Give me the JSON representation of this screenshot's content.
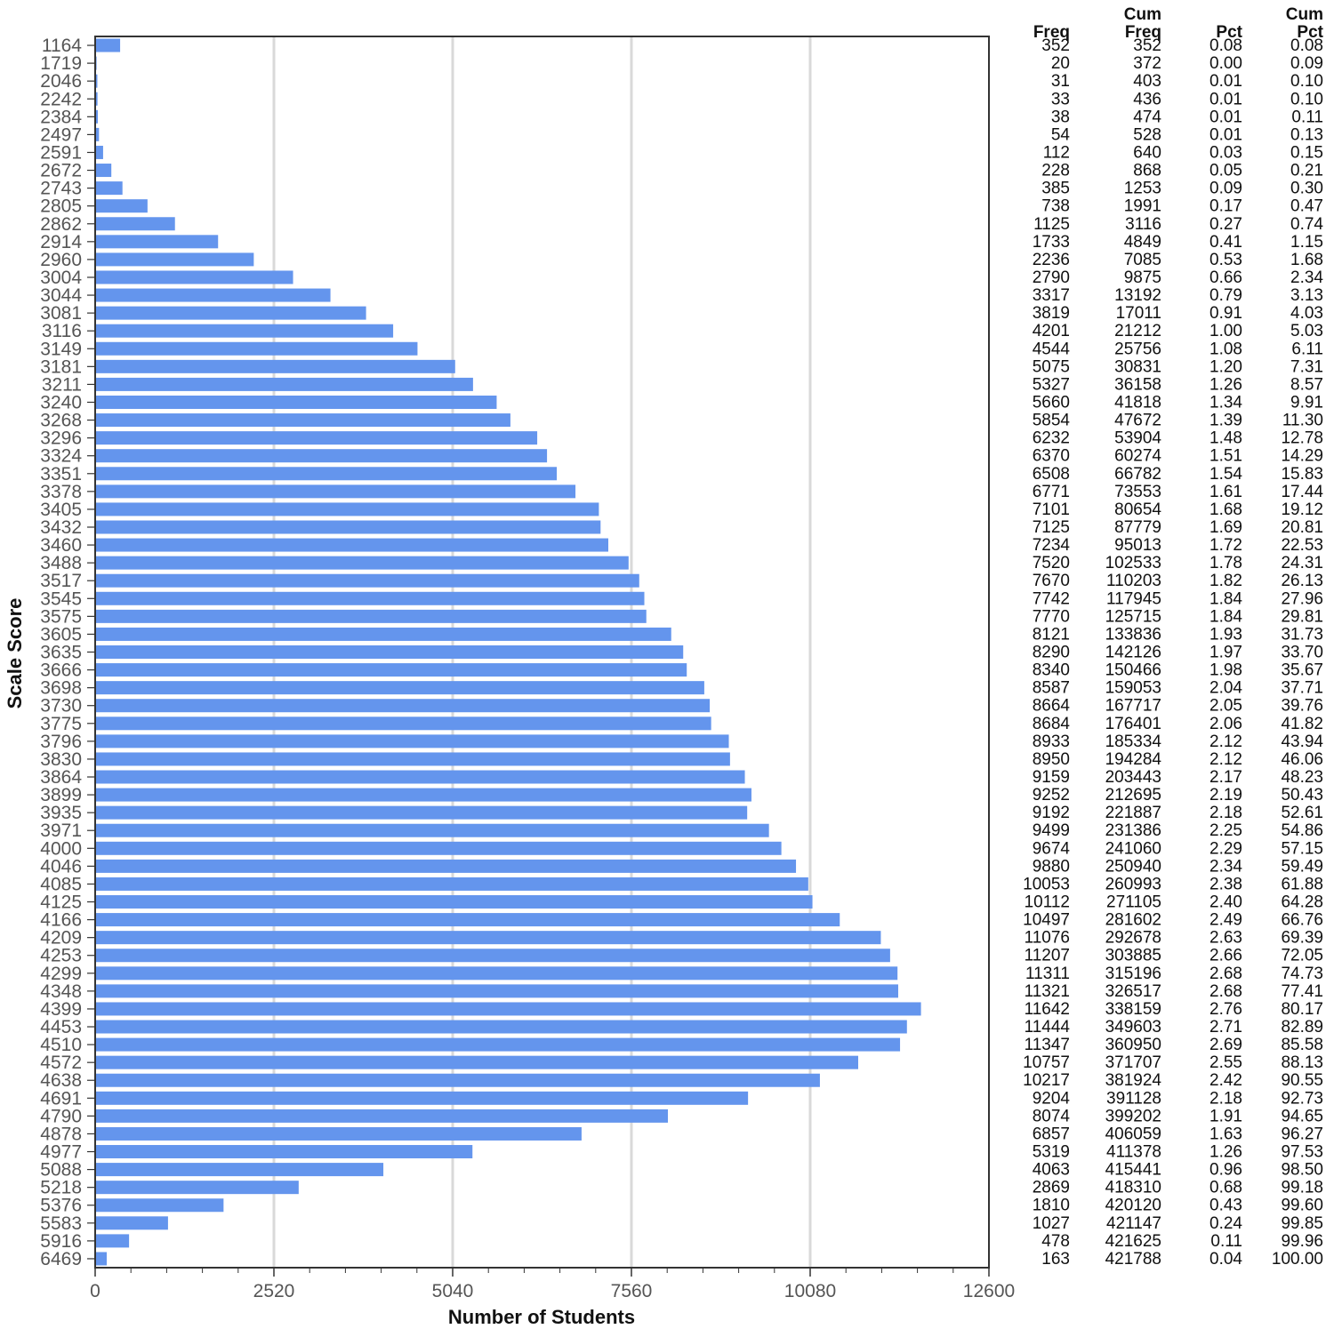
{
  "chart_data": {
    "type": "bar",
    "orientation": "horizontal",
    "ylabel": "Scale Score",
    "xlabel": "Number of Students",
    "xlim": [
      0,
      12600
    ],
    "xticks": [
      0,
      2520,
      5040,
      7560,
      10080,
      12600
    ],
    "grid": true,
    "bar_color": "#6495ED",
    "categories": [
      "1164",
      "1719",
      "2046",
      "2242",
      "2384",
      "2497",
      "2591",
      "2672",
      "2743",
      "2805",
      "2862",
      "2914",
      "2960",
      "3004",
      "3044",
      "3081",
      "3116",
      "3149",
      "3181",
      "3211",
      "3240",
      "3268",
      "3296",
      "3324",
      "3351",
      "3378",
      "3405",
      "3432",
      "3460",
      "3488",
      "3517",
      "3545",
      "3575",
      "3605",
      "3635",
      "3666",
      "3698",
      "3730",
      "3775",
      "3796",
      "3830",
      "3864",
      "3899",
      "3935",
      "3971",
      "4000",
      "4046",
      "4085",
      "4125",
      "4166",
      "4209",
      "4253",
      "4299",
      "4348",
      "4399",
      "4453",
      "4510",
      "4572",
      "4638",
      "4691",
      "4790",
      "4878",
      "4977",
      "5088",
      "5218",
      "5376",
      "5583",
      "5916",
      "6469"
    ],
    "values": [
      352,
      20,
      31,
      33,
      38,
      54,
      112,
      228,
      385,
      738,
      1125,
      1733,
      2236,
      2790,
      3317,
      3819,
      4201,
      4544,
      5075,
      5327,
      5660,
      5854,
      6232,
      6370,
      6508,
      6771,
      7101,
      7125,
      7234,
      7520,
      7670,
      7742,
      7770,
      8121,
      8290,
      8340,
      8587,
      8664,
      8684,
      8933,
      8950,
      9159,
      9252,
      9192,
      9499,
      9674,
      9880,
      10053,
      10112,
      10497,
      11076,
      11207,
      11311,
      11321,
      11642,
      11444,
      11347,
      10757,
      10217,
      9204,
      8074,
      6857,
      5319,
      4063,
      2869,
      1810,
      1027,
      478,
      163
    ]
  },
  "table": {
    "headers": [
      [
        "",
        "Freq"
      ],
      [
        "Cum",
        "Freq"
      ],
      [
        "",
        "Pct"
      ],
      [
        "Cum",
        "Pct"
      ]
    ],
    "cum_freq": [
      "352",
      "372",
      "403",
      "436",
      "474",
      "528",
      "640",
      "868",
      "1253",
      "1991",
      "3116",
      "4849",
      "7085",
      "9875",
      "13192",
      "17011",
      "21212",
      "25756",
      "30831",
      "36158",
      "41818",
      "47672",
      "53904",
      "60274",
      "66782",
      "73553",
      "80654",
      "87779",
      "95013",
      "102533",
      "110203",
      "117945",
      "125715",
      "133836",
      "142126",
      "150466",
      "159053",
      "167717",
      "176401",
      "185334",
      "194284",
      "203443",
      "212695",
      "221887",
      "231386",
      "241060",
      "250940",
      "260993",
      "271105",
      "281602",
      "292678",
      "303885",
      "315196",
      "326517",
      "338159",
      "349603",
      "360950",
      "371707",
      "381924",
      "391128",
      "399202",
      "406059",
      "411378",
      "415441",
      "418310",
      "420120",
      "421147",
      "421625",
      "421788"
    ],
    "pct": [
      "0.08",
      "0.00",
      "0.01",
      "0.01",
      "0.01",
      "0.01",
      "0.03",
      "0.05",
      "0.09",
      "0.17",
      "0.27",
      "0.41",
      "0.53",
      "0.66",
      "0.79",
      "0.91",
      "1.00",
      "1.08",
      "1.20",
      "1.26",
      "1.34",
      "1.39",
      "1.48",
      "1.51",
      "1.54",
      "1.61",
      "1.68",
      "1.69",
      "1.72",
      "1.78",
      "1.82",
      "1.84",
      "1.84",
      "1.93",
      "1.97",
      "1.98",
      "2.04",
      "2.05",
      "2.06",
      "2.12",
      "2.12",
      "2.17",
      "2.19",
      "2.18",
      "2.25",
      "2.29",
      "2.34",
      "2.38",
      "2.40",
      "2.49",
      "2.63",
      "2.66",
      "2.68",
      "2.68",
      "2.76",
      "2.71",
      "2.69",
      "2.55",
      "2.42",
      "2.18",
      "1.91",
      "1.63",
      "1.26",
      "0.96",
      "0.68",
      "0.43",
      "0.24",
      "0.11",
      "0.04"
    ],
    "cum_pct": [
      "0.08",
      "0.09",
      "0.10",
      "0.10",
      "0.11",
      "0.13",
      "0.15",
      "0.21",
      "0.30",
      "0.47",
      "0.74",
      "1.15",
      "1.68",
      "2.34",
      "3.13",
      "4.03",
      "5.03",
      "6.11",
      "7.31",
      "8.57",
      "9.91",
      "11.30",
      "12.78",
      "14.29",
      "15.83",
      "17.44",
      "19.12",
      "20.81",
      "22.53",
      "24.31",
      "26.13",
      "27.96",
      "29.81",
      "31.73",
      "33.70",
      "35.67",
      "37.71",
      "39.76",
      "41.82",
      "43.94",
      "46.06",
      "48.23",
      "50.43",
      "52.61",
      "54.86",
      "57.15",
      "59.49",
      "61.88",
      "64.28",
      "66.76",
      "69.39",
      "72.05",
      "74.73",
      "77.41",
      "80.17",
      "82.89",
      "85.58",
      "88.13",
      "90.55",
      "92.73",
      "94.65",
      "96.27",
      "97.53",
      "98.50",
      "99.18",
      "99.60",
      "99.85",
      "99.96",
      "100.00"
    ]
  }
}
